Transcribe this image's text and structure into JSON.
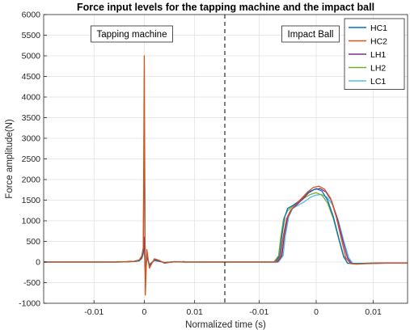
{
  "chart_data": {
    "type": "line",
    "title": "Force input levels for the tapping machine and the impact ball",
    "xlabel": "Normalized time (s)",
    "ylabel": "Force amplitude(N)",
    "ylim": [
      -1000,
      6000
    ],
    "yticks": [
      -1000,
      -500,
      0,
      500,
      1000,
      1500,
      2000,
      2500,
      3000,
      3500,
      4000,
      4500,
      5000,
      5500,
      6000
    ],
    "grid": true,
    "legend_position": "top-right",
    "annotations": [
      "Tapping machine",
      "Impact Ball"
    ],
    "panels": [
      {
        "name": "tapping-machine",
        "xlim": [
          -0.02,
          0.016
        ],
        "xticks": [
          {
            "value": -0.01,
            "label": "-0.01"
          },
          {
            "value": 0,
            "label": "0"
          },
          {
            "value": 0.01,
            "label": "0.01"
          }
        ]
      },
      {
        "name": "impact-ball",
        "xlim": [
          -0.016,
          0.016
        ],
        "xticks": [
          {
            "value": -0.01,
            "label": "-0.01"
          },
          {
            "value": 0,
            "label": "0"
          },
          {
            "value": 0.01,
            "label": "0.01"
          }
        ]
      }
    ],
    "series": [
      {
        "name": "HC1",
        "color": "#0072BD",
        "tapping": [
          [
            -0.02,
            0
          ],
          [
            -0.006,
            0
          ],
          [
            -0.004,
            3
          ],
          [
            -0.002,
            15
          ],
          [
            -0.001,
            40
          ],
          [
            -0.0005,
            120
          ],
          [
            -0.0002,
            300
          ],
          [
            0,
            3500
          ],
          [
            0.0002,
            -500
          ],
          [
            0.0005,
            200
          ],
          [
            0.001,
            -100
          ],
          [
            0.002,
            60
          ],
          [
            0.003,
            30
          ],
          [
            0.004,
            -20
          ],
          [
            0.006,
            10
          ],
          [
            0.008,
            0
          ],
          [
            0.016,
            0
          ]
        ],
        "impact": [
          [
            -0.016,
            0
          ],
          [
            -0.0072,
            0
          ],
          [
            -0.0064,
            150
          ],
          [
            -0.006,
            650
          ],
          [
            -0.0055,
            1100
          ],
          [
            -0.005,
            1300
          ],
          [
            -0.004,
            1380
          ],
          [
            -0.003,
            1480
          ],
          [
            -0.002,
            1620
          ],
          [
            -0.001,
            1720
          ],
          [
            0,
            1780
          ],
          [
            0.001,
            1720
          ],
          [
            0.002,
            1500
          ],
          [
            0.003,
            1100
          ],
          [
            0.004,
            550
          ],
          [
            0.0048,
            150
          ],
          [
            0.0055,
            -30
          ],
          [
            0.007,
            -40
          ],
          [
            0.009,
            -30
          ],
          [
            0.012,
            -25
          ],
          [
            0.016,
            -25
          ]
        ]
      },
      {
        "name": "HC2",
        "color": "#D95319",
        "tapping": [
          [
            -0.02,
            0
          ],
          [
            -0.006,
            0
          ],
          [
            -0.004,
            5
          ],
          [
            -0.002,
            20
          ],
          [
            -0.001,
            50
          ],
          [
            -0.0005,
            150
          ],
          [
            -0.0002,
            350
          ],
          [
            0,
            5000
          ],
          [
            0.0002,
            -800
          ],
          [
            0.0005,
            300
          ],
          [
            0.001,
            -150
          ],
          [
            0.002,
            80
          ],
          [
            0.003,
            40
          ],
          [
            0.004,
            -30
          ],
          [
            0.006,
            10
          ],
          [
            0.008,
            0
          ],
          [
            0.016,
            0
          ]
        ],
        "impact": [
          [
            -0.016,
            0
          ],
          [
            -0.007,
            0
          ],
          [
            -0.0062,
            150
          ],
          [
            -0.0058,
            600
          ],
          [
            -0.0052,
            1050
          ],
          [
            -0.0045,
            1250
          ],
          [
            -0.0035,
            1400
          ],
          [
            -0.0025,
            1550
          ],
          [
            -0.0015,
            1700
          ],
          [
            -0.0005,
            1810
          ],
          [
            0.0005,
            1840
          ],
          [
            0.0015,
            1760
          ],
          [
            0.0025,
            1550
          ],
          [
            0.0035,
            1100
          ],
          [
            0.0045,
            500
          ],
          [
            0.0052,
            100
          ],
          [
            0.006,
            -40
          ],
          [
            0.007,
            -50
          ],
          [
            0.009,
            -40
          ],
          [
            0.012,
            -30
          ],
          [
            0.016,
            -30
          ]
        ]
      },
      {
        "name": "LH1",
        "color": "#7E2F8E",
        "tapping": [
          [
            -0.02,
            0
          ],
          [
            -0.006,
            0
          ],
          [
            -0.004,
            4
          ],
          [
            -0.002,
            18
          ],
          [
            -0.001,
            35
          ],
          [
            -0.0005,
            100
          ],
          [
            -0.0002,
            250
          ],
          [
            0,
            600
          ],
          [
            0.0002,
            -300
          ],
          [
            0.0005,
            150
          ],
          [
            0.001,
            -80
          ],
          [
            0.002,
            50
          ],
          [
            0.003,
            20
          ],
          [
            0.004,
            -15
          ],
          [
            0.006,
            8
          ],
          [
            0.008,
            0
          ],
          [
            0.016,
            0
          ]
        ],
        "impact": [
          [
            -0.016,
            0
          ],
          [
            -0.0068,
            0
          ],
          [
            -0.006,
            150
          ],
          [
            -0.0056,
            620
          ],
          [
            -0.005,
            1080
          ],
          [
            -0.0043,
            1280
          ],
          [
            -0.0033,
            1400
          ],
          [
            -0.0023,
            1540
          ],
          [
            -0.0013,
            1680
          ],
          [
            -0.0003,
            1760
          ],
          [
            0.0007,
            1780
          ],
          [
            0.0017,
            1700
          ],
          [
            0.0027,
            1480
          ],
          [
            0.0037,
            1050
          ],
          [
            0.0047,
            500
          ],
          [
            0.0055,
            100
          ],
          [
            0.0062,
            -40
          ],
          [
            0.008,
            -40
          ],
          [
            0.01,
            -30
          ],
          [
            0.012,
            -25
          ],
          [
            0.016,
            -25
          ]
        ]
      },
      {
        "name": "LH2",
        "color": "#77AC30",
        "tapping": [
          [
            -0.02,
            0
          ],
          [
            -0.006,
            0
          ],
          [
            -0.004,
            3
          ],
          [
            -0.002,
            12
          ],
          [
            -0.001,
            30
          ],
          [
            -0.0005,
            90
          ],
          [
            -0.0002,
            220
          ],
          [
            0,
            550
          ],
          [
            0.0002,
            -250
          ],
          [
            0.0005,
            120
          ],
          [
            0.001,
            -60
          ],
          [
            0.002,
            40
          ],
          [
            0.003,
            15
          ],
          [
            0.004,
            -10
          ],
          [
            0.006,
            5
          ],
          [
            0.008,
            0
          ],
          [
            0.016,
            0
          ]
        ],
        "impact": [
          [
            -0.016,
            0
          ],
          [
            -0.0074,
            0
          ],
          [
            -0.0066,
            150
          ],
          [
            -0.0062,
            600
          ],
          [
            -0.0057,
            1050
          ],
          [
            -0.005,
            1250
          ],
          [
            -0.004,
            1360
          ],
          [
            -0.003,
            1450
          ],
          [
            -0.002,
            1560
          ],
          [
            -0.001,
            1640
          ],
          [
            0,
            1680
          ],
          [
            0.001,
            1620
          ],
          [
            0.002,
            1430
          ],
          [
            0.003,
            1050
          ],
          [
            0.004,
            520
          ],
          [
            0.0048,
            120
          ],
          [
            0.0055,
            -30
          ],
          [
            0.007,
            -40
          ],
          [
            0.009,
            -30
          ],
          [
            0.012,
            -25
          ],
          [
            0.016,
            -25
          ]
        ]
      },
      {
        "name": "LC1",
        "color": "#4DBEEE",
        "tapping": [
          [
            -0.02,
            0
          ],
          [
            -0.006,
            0
          ],
          [
            -0.004,
            2
          ],
          [
            -0.002,
            10
          ],
          [
            -0.001,
            25
          ],
          [
            -0.0005,
            80
          ],
          [
            -0.0002,
            180
          ],
          [
            0,
            450
          ],
          [
            0.0002,
            -200
          ],
          [
            0.0005,
            100
          ],
          [
            0.001,
            -50
          ],
          [
            0.002,
            30
          ],
          [
            0.003,
            12
          ],
          [
            0.004,
            -8
          ],
          [
            0.006,
            4
          ],
          [
            0.0075,
            0
          ],
          [
            0.0078,
            20
          ],
          [
            0.0081,
            0
          ],
          [
            0.016,
            0
          ]
        ],
        "impact": [
          [
            -0.016,
            0
          ],
          [
            -0.0066,
            0
          ],
          [
            -0.0058,
            150
          ],
          [
            -0.0054,
            640
          ],
          [
            -0.0048,
            1100
          ],
          [
            -0.0041,
            1300
          ],
          [
            -0.0031,
            1380
          ],
          [
            -0.0021,
            1460
          ],
          [
            -0.0011,
            1560
          ],
          [
            -0.0001,
            1620
          ],
          [
            0.0009,
            1640
          ],
          [
            0.0019,
            1570
          ],
          [
            0.0029,
            1380
          ],
          [
            0.0039,
            1000
          ],
          [
            0.0049,
            480
          ],
          [
            0.0057,
            100
          ],
          [
            0.0064,
            -30
          ],
          [
            0.008,
            -40
          ],
          [
            0.01,
            -30
          ],
          [
            0.012,
            -25
          ],
          [
            0.016,
            -25
          ]
        ]
      }
    ]
  }
}
